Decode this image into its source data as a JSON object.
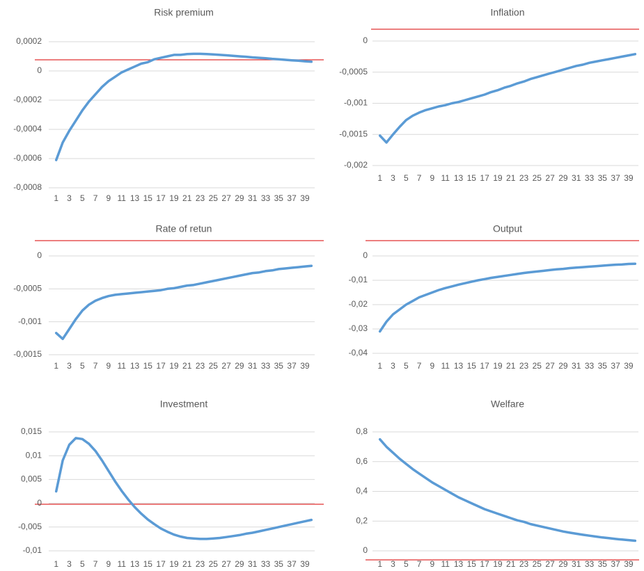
{
  "chart_data": [
    {
      "type": "line",
      "title": "Risk premium",
      "color": "#5b9bd5",
      "categories": [
        1,
        null,
        3,
        null,
        5,
        null,
        7,
        null,
        9,
        null,
        11,
        null,
        13,
        null,
        15,
        null,
        17,
        null,
        19,
        null,
        21,
        null,
        23,
        null,
        25,
        null,
        27,
        null,
        29,
        null,
        31,
        null,
        33,
        null,
        35,
        null,
        37,
        null,
        39,
        null
      ],
      "values": [
        -0.00061,
        -0.00049,
        -0.00041,
        -0.00034,
        -0.00027,
        -0.00021,
        -0.00016,
        -0.00011,
        -7e-05,
        -4e-05,
        -1e-05,
        1e-05,
        3e-05,
        5e-05,
        6e-05,
        8e-05,
        9e-05,
        0.0001,
        0.00011,
        0.00011,
        0.000115,
        0.000117,
        0.000117,
        0.000115,
        0.000113,
        0.00011,
        0.000107,
        0.000104,
        0.0001,
        9.7e-05,
        9.3e-05,
        9e-05,
        8.7e-05,
        8.3e-05,
        8e-05,
        7.6e-05,
        7.3e-05,
        7e-05,
        6.6e-05,
        6.3e-05
      ],
      "ylim": [
        -0.0008,
        0.0002
      ],
      "yticks": [
        {
          "value": -0.0008,
          "label": "-0,0008"
        },
        {
          "value": -0.0006,
          "label": "-0,0006"
        },
        {
          "value": -0.0004,
          "label": "-0,0004"
        },
        {
          "value": -0.0002,
          "label": "-0,0002"
        },
        0,
        {
          "value": 0.0002,
          "label": "0,0002"
        }
      ],
      "grid": true
    },
    {
      "type": "line",
      "title": "Inflation",
      "color": "#5b9bd5",
      "categories": [
        1,
        null,
        3,
        null,
        5,
        null,
        7,
        null,
        9,
        null,
        11,
        null,
        13,
        null,
        15,
        null,
        17,
        null,
        19,
        null,
        21,
        null,
        23,
        null,
        25,
        null,
        27,
        null,
        29,
        null,
        31,
        null,
        33,
        null,
        35,
        null,
        37,
        null,
        39,
        null
      ],
      "values": [
        -0.00152,
        -0.00163,
        -0.0015,
        -0.00138,
        -0.00127,
        -0.0012,
        -0.00115,
        -0.00111,
        -0.00108,
        -0.00105,
        -0.00103,
        -0.001,
        -0.00098,
        -0.00095,
        -0.00092,
        -0.00089,
        -0.00086,
        -0.00082,
        -0.00079,
        -0.00075,
        -0.00072,
        -0.00068,
        -0.00065,
        -0.00061,
        -0.00058,
        -0.00055,
        -0.00052,
        -0.00049,
        -0.00046,
        -0.00043,
        -0.0004,
        -0.00038,
        -0.00035,
        -0.00033,
        -0.00031,
        -0.00029,
        -0.00027,
        -0.00025,
        -0.00023,
        -0.00021
      ],
      "ylim": [
        -0.002,
        0
      ],
      "yticks": [
        {
          "value": -0.002,
          "label": "-0,002"
        },
        {
          "value": -0.0015,
          "label": "-0,0015"
        },
        {
          "value": -0.001,
          "label": "-0,001"
        },
        {
          "value": -0.0005,
          "label": "-0,0005"
        },
        0
      ],
      "grid": true
    },
    {
      "type": "line",
      "title": "Rate of retun",
      "color": "#5b9bd5",
      "categories": [
        1,
        null,
        3,
        null,
        5,
        null,
        7,
        null,
        9,
        null,
        11,
        null,
        13,
        null,
        15,
        null,
        17,
        null,
        19,
        null,
        21,
        null,
        23,
        null,
        25,
        null,
        27,
        null,
        29,
        null,
        31,
        null,
        33,
        null,
        35,
        null,
        37,
        null,
        39,
        null
      ],
      "values": [
        -0.00117,
        -0.00126,
        -0.00111,
        -0.00096,
        -0.00083,
        -0.00074,
        -0.00068,
        -0.00064,
        -0.00061,
        -0.00059,
        -0.00058,
        -0.00057,
        -0.00056,
        -0.00055,
        -0.00054,
        -0.00053,
        -0.00052,
        -0.0005,
        -0.00049,
        -0.00047,
        -0.00045,
        -0.00044,
        -0.00042,
        -0.0004,
        -0.00038,
        -0.00036,
        -0.00034,
        -0.00032,
        -0.0003,
        -0.00028,
        -0.00026,
        -0.00025,
        -0.00023,
        -0.00022,
        -0.0002,
        -0.00019,
        -0.00018,
        -0.00017,
        -0.00016,
        -0.00015
      ],
      "ylim": [
        -0.0015,
        0
      ],
      "yticks": [
        {
          "value": -0.0015,
          "label": "-0,0015"
        },
        {
          "value": -0.001,
          "label": "-0,001"
        },
        {
          "value": -0.0005,
          "label": "-0,0005"
        },
        0
      ],
      "grid": true
    },
    {
      "type": "line",
      "title": "Output",
      "color": "#5b9bd5",
      "categories": [
        1,
        null,
        3,
        null,
        5,
        null,
        7,
        null,
        9,
        null,
        11,
        null,
        13,
        null,
        15,
        null,
        17,
        null,
        19,
        null,
        21,
        null,
        23,
        null,
        25,
        null,
        27,
        null,
        29,
        null,
        31,
        null,
        33,
        null,
        35,
        null,
        37,
        null,
        39,
        null
      ],
      "values": [
        -0.031,
        -0.027,
        -0.024,
        -0.022,
        -0.02,
        -0.0185,
        -0.017,
        -0.016,
        -0.015,
        -0.014,
        -0.0132,
        -0.0125,
        -0.0118,
        -0.0112,
        -0.0106,
        -0.01,
        -0.0095,
        -0.009,
        -0.0086,
        -0.0082,
        -0.0078,
        -0.0074,
        -0.007,
        -0.0067,
        -0.0064,
        -0.0061,
        -0.0058,
        -0.0055,
        -0.0053,
        -0.005,
        -0.0048,
        -0.0046,
        -0.0044,
        -0.0042,
        -0.004,
        -0.0038,
        -0.0036,
        -0.0035,
        -0.0033,
        -0.0032
      ],
      "ylim": [
        -0.04,
        0
      ],
      "yticks": [
        {
          "value": -0.04,
          "label": "-0,04"
        },
        {
          "value": -0.03,
          "label": "-0,03"
        },
        {
          "value": -0.02,
          "label": "-0,02"
        },
        {
          "value": -0.01,
          "label": "-0,01"
        },
        0
      ],
      "grid": true
    },
    {
      "type": "line",
      "title": "Investment",
      "color": "#5b9bd5",
      "categories": [
        1,
        null,
        3,
        null,
        5,
        null,
        7,
        null,
        9,
        null,
        11,
        null,
        13,
        null,
        15,
        null,
        17,
        null,
        19,
        null,
        21,
        null,
        23,
        null,
        25,
        null,
        27,
        null,
        29,
        null,
        31,
        null,
        33,
        null,
        35,
        null,
        37,
        null,
        39,
        null
      ],
      "values": [
        0.0025,
        0.009,
        0.0123,
        0.0137,
        0.0135,
        0.0125,
        0.011,
        0.009,
        0.0068,
        0.0046,
        0.0026,
        0.0008,
        -0.0008,
        -0.0022,
        -0.0034,
        -0.0044,
        -0.0053,
        -0.006,
        -0.0066,
        -0.007,
        -0.0073,
        -0.0074,
        -0.0075,
        -0.0075,
        -0.0074,
        -0.0073,
        -0.0071,
        -0.0069,
        -0.0067,
        -0.0064,
        -0.0062,
        -0.0059,
        -0.0056,
        -0.0053,
        -0.005,
        -0.0047,
        -0.0044,
        -0.0041,
        -0.0038,
        -0.0035
      ],
      "ylim": [
        -0.01,
        0.015
      ],
      "yticks": [
        {
          "value": -0.01,
          "label": "-0,01"
        },
        {
          "value": -0.005,
          "label": "-0,005"
        },
        0,
        {
          "value": 0.005,
          "label": "0,005"
        },
        {
          "value": 0.01,
          "label": "0,01"
        },
        {
          "value": 0.015,
          "label": "0,015"
        }
      ],
      "grid": true
    },
    {
      "type": "line",
      "title": "Welfare",
      "color": "#5b9bd5",
      "categories": [
        1,
        null,
        3,
        null,
        5,
        null,
        7,
        null,
        9,
        null,
        11,
        null,
        13,
        null,
        15,
        null,
        17,
        null,
        19,
        null,
        21,
        null,
        23,
        null,
        25,
        null,
        27,
        null,
        29,
        null,
        31,
        null,
        33,
        null,
        35,
        null,
        37,
        null,
        39,
        null
      ],
      "values": [
        0.75,
        0.7,
        0.66,
        0.62,
        0.585,
        0.55,
        0.52,
        0.49,
        0.46,
        0.435,
        0.41,
        0.385,
        0.36,
        0.34,
        0.32,
        0.3,
        0.28,
        0.265,
        0.25,
        0.235,
        0.22,
        0.205,
        0.195,
        0.18,
        0.17,
        0.16,
        0.15,
        0.14,
        0.13,
        0.122,
        0.115,
        0.108,
        0.102,
        0.096,
        0.09,
        0.085,
        0.08,
        0.076,
        0.072,
        0.068
      ],
      "ylim": [
        0,
        0.8
      ],
      "yticks": [
        0,
        {
          "value": 0.2,
          "label": "0,2"
        },
        {
          "value": 0.4,
          "label": "0,4"
        },
        {
          "value": 0.6,
          "label": "0,6"
        },
        {
          "value": 0.8,
          "label": "0,8"
        }
      ],
      "grid": true
    }
  ]
}
